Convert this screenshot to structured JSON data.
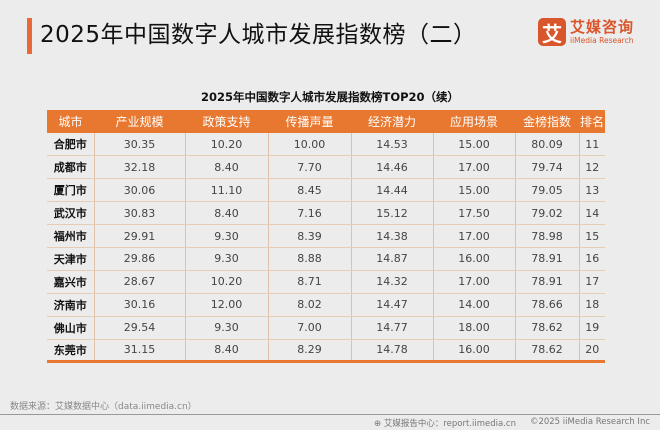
{
  "header": {
    "title": "2025年中国数字人城市发展指数榜（二）"
  },
  "logo": {
    "mark": "艾",
    "name_cn": "艾媒咨询",
    "name_en": "iiMedia Research",
    "color": "#d9552b"
  },
  "table": {
    "caption": "2025年中国数字人城市发展指数榜TOP20（续）",
    "header_color": "#e87830",
    "columns": [
      "城市",
      "产业规模",
      "政策支持",
      "传播声量",
      "经济潜力",
      "应用场景",
      "金榜指数",
      "排名"
    ],
    "rows": [
      [
        "合肥市",
        "30.35",
        "10.20",
        "10.00",
        "14.53",
        "15.00",
        "80.09",
        "11"
      ],
      [
        "成都市",
        "32.18",
        "8.40",
        "7.70",
        "14.46",
        "17.00",
        "79.74",
        "12"
      ],
      [
        "厦门市",
        "30.06",
        "11.10",
        "8.45",
        "14.44",
        "15.00",
        "79.05",
        "13"
      ],
      [
        "武汉市",
        "30.83",
        "8.40",
        "7.16",
        "15.12",
        "17.50",
        "79.02",
        "14"
      ],
      [
        "福州市",
        "29.91",
        "9.30",
        "8.39",
        "14.38",
        "17.00",
        "78.98",
        "15"
      ],
      [
        "天津市",
        "29.86",
        "9.30",
        "8.88",
        "14.87",
        "16.00",
        "78.91",
        "16"
      ],
      [
        "嘉兴市",
        "28.67",
        "10.20",
        "8.71",
        "14.32",
        "17.00",
        "78.91",
        "17"
      ],
      [
        "济南市",
        "30.16",
        "12.00",
        "8.02",
        "14.47",
        "14.00",
        "78.66",
        "18"
      ],
      [
        "佛山市",
        "29.54",
        "9.30",
        "7.00",
        "14.77",
        "18.00",
        "78.62",
        "19"
      ],
      [
        "东莞市",
        "31.15",
        "8.40",
        "8.29",
        "14.78",
        "16.00",
        "78.62",
        "20"
      ]
    ]
  },
  "footer": {
    "source": "数据来源：艾媒数据中心（data.iimedia.cn）",
    "report_icon": "globe-icon",
    "report": "艾媒报告中心：report.iimedia.cn",
    "copyright": "©2025  iiMedia Research  Inc"
  }
}
